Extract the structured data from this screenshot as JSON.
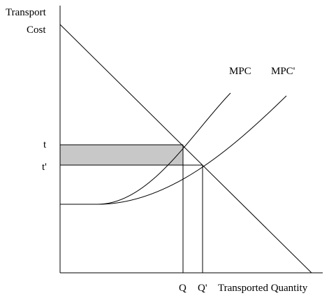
{
  "y_axis": {
    "label_lines": [
      "Transport",
      "Cost"
    ],
    "ticks": [
      "t",
      "t'"
    ]
  },
  "x_axis": {
    "label": "Transported Quantity",
    "ticks": [
      "Q",
      "Q'"
    ]
  },
  "curves": [
    {
      "label": "MPC"
    },
    {
      "label": "MPC'"
    }
  ]
}
